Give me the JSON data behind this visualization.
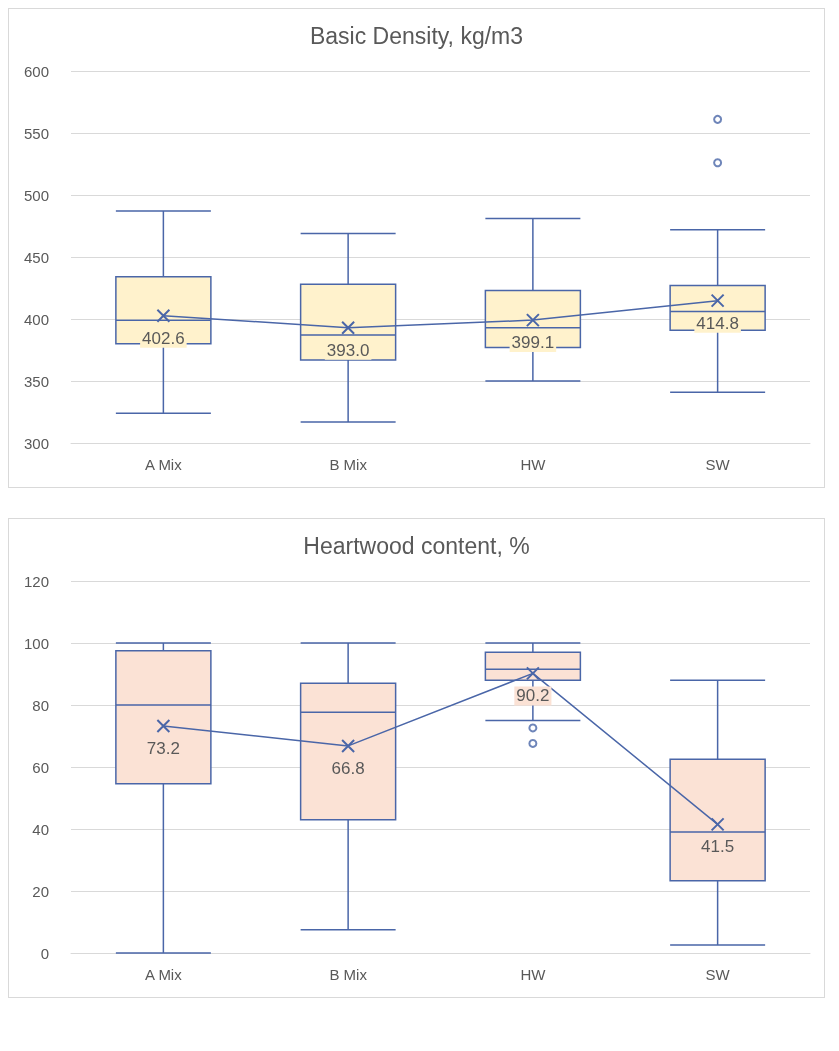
{
  "chart_data": [
    {
      "type": "box",
      "title": "Basic Density, kg/m3",
      "categories": [
        "A Mix",
        "B Mix",
        "HW",
        "SW"
      ],
      "series": [
        {
          "color": "#fff2cc",
          "boxes": [
            {
              "low": 324,
              "q1": 380,
              "median": 399,
              "q3": 434,
              "high": 487
            },
            {
              "low": 317,
              "q1": 367,
              "median": 387,
              "q3": 428,
              "high": 469
            },
            {
              "low": 350,
              "q1": 377,
              "median": 393,
              "q3": 423,
              "high": 481
            },
            {
              "low": 341,
              "q1": 391,
              "median": 406,
              "q3": 427,
              "high": 472,
              "outliers": [
                526,
                561
              ]
            }
          ]
        },
        {
          "type": "line",
          "color": "#4a66a8",
          "values": [
            402.6,
            393.0,
            399.1,
            414.8
          ],
          "value_labels": [
            "402.6",
            "393.0",
            "399.1",
            "414.8"
          ]
        }
      ],
      "ylim": [
        300,
        600
      ],
      "yticks": [
        300,
        350,
        400,
        450,
        500,
        550,
        600
      ],
      "grid": "y",
      "marker": "cross",
      "line_style": "solid"
    },
    {
      "type": "box",
      "title": "Heartwood content, %",
      "categories": [
        "A Mix",
        "B Mix",
        "HW",
        "SW"
      ],
      "series": [
        {
          "color": "#fbe2d5",
          "boxes": [
            {
              "low": 0,
              "q1": 54.6,
              "median": 80,
              "q3": 97.5,
              "high": 100
            },
            {
              "low": 7.5,
              "q1": 43,
              "median": 77.7,
              "q3": 87,
              "high": 100
            },
            {
              "low": 75,
              "q1": 88,
              "median": 91.5,
              "q3": 97,
              "high": 100,
              "outliers": [
                67.6,
                72.6
              ]
            },
            {
              "low": 2.6,
              "q1": 23.3,
              "median": 39,
              "q3": 62.5,
              "high": 88
            }
          ]
        },
        {
          "type": "line",
          "color": "#4a66a8",
          "values": [
            73.2,
            66.8,
            90.2,
            41.5
          ],
          "value_labels": [
            "73.2",
            "66.8",
            "90.2",
            "41.5"
          ]
        }
      ],
      "ylim": [
        0,
        120
      ],
      "yticks": [
        0,
        20,
        40,
        60,
        80,
        100,
        120
      ],
      "grid": "y",
      "marker": "cross",
      "line_style": "solid"
    }
  ]
}
